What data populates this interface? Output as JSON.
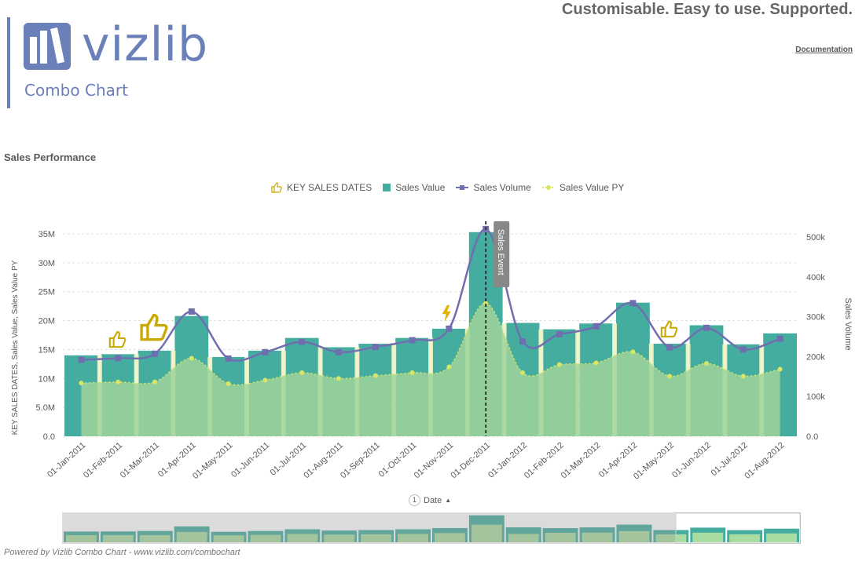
{
  "header": {
    "brand": "vizlib",
    "subtitle": "Combo Chart",
    "tagline": "Customisable. Easy to use. Supported.",
    "doc_link": "Documentation"
  },
  "chart_title": "Sales Performance",
  "legend": [
    {
      "label": "KEY SALES DATES",
      "icon": "thumbs-up-icon",
      "color": "#c9a800"
    },
    {
      "label": "Sales Value",
      "icon": "square-swatch",
      "color": "#45ad9f"
    },
    {
      "label": "Sales Volume",
      "icon": "line-square-swatch",
      "color": "#6f6fb0"
    },
    {
      "label": "Sales Value PY",
      "icon": "dotted-line-swatch",
      "color": "#d9e565"
    }
  ],
  "dimension_label": "Date",
  "dimension_sort_badge": "1",
  "footer": "Powered by Vizlib Combo Chart - www.vizlib.com/combochart",
  "chart_data": {
    "type": "combo",
    "categories": [
      "01-Jan-2011",
      "01-Feb-2011",
      "01-Mar-2011",
      "01-Apr-2011",
      "01-May-2011",
      "01-Jun-2011",
      "01-Jul-2011",
      "01-Aug-2011",
      "01-Sep-2011",
      "01-Oct-2011",
      "01-Nov-2011",
      "01-Dec-2011",
      "01-Jan-2012",
      "01-Feb-2012",
      "01-Mar-2012",
      "01-Apr-2012",
      "01-May-2012",
      "01-Jun-2012",
      "01-Jul-2012",
      "01-Aug-2012"
    ],
    "left_axis": {
      "label": "KEY SALES DATES,  Sales Value,  Sales Value PY",
      "ticks": [
        "0.0",
        "5.0M",
        "10M",
        "15M",
        "20M",
        "25M",
        "30M",
        "35M"
      ],
      "ylim": [
        0,
        35000000
      ]
    },
    "right_axis": {
      "label": "Sales Volume",
      "ticks": [
        "0.0",
        "100k",
        "200k",
        "300k",
        "400k",
        "500k"
      ],
      "ylim": [
        0,
        500000
      ]
    },
    "series": [
      {
        "name": "Sales Value",
        "type": "bar",
        "color": "#45ad9f",
        "values": [
          14000000,
          14200000,
          14800000,
          20800000,
          13700000,
          14800000,
          17000000,
          15400000,
          16000000,
          17000000,
          18600000,
          35300000,
          19600000,
          18500000,
          19500000,
          23100000,
          16000000,
          19200000,
          15900000,
          17800000
        ]
      },
      {
        "name": "Sales Value PY",
        "type": "area",
        "color": "#d9e565",
        "values": [
          9200000,
          9400000,
          9400000,
          13500000,
          9100000,
          9700000,
          11000000,
          10000000,
          10500000,
          11000000,
          12000000,
          23000000,
          11000000,
          12400000,
          12700000,
          14600000,
          10400000,
          12600000,
          10400000,
          11600000
        ]
      },
      {
        "name": "Sales Volume",
        "type": "line",
        "axis": "right",
        "color": "#6f6fb0",
        "values": [
          192000,
          196000,
          207000,
          313000,
          195000,
          211000,
          237000,
          211000,
          224000,
          241000,
          270000,
          520000,
          238000,
          256000,
          276000,
          334000,
          223000,
          272000,
          218000,
          245000
        ]
      }
    ],
    "key_sales_dates": [
      {
        "category": "01-Feb-2011",
        "icon": "thumbs-up-icon"
      },
      {
        "category": "01-Mar-2011",
        "icon": "thumbs-up-icon"
      },
      {
        "category": "01-Nov-2011",
        "icon": "lightning-icon"
      },
      {
        "category": "01-May-2012",
        "icon": "thumbs-up-icon"
      }
    ],
    "reference_line": {
      "category": "01-Dec-2011",
      "label": "Sales Event"
    },
    "grid": true,
    "legend_position": "top"
  }
}
